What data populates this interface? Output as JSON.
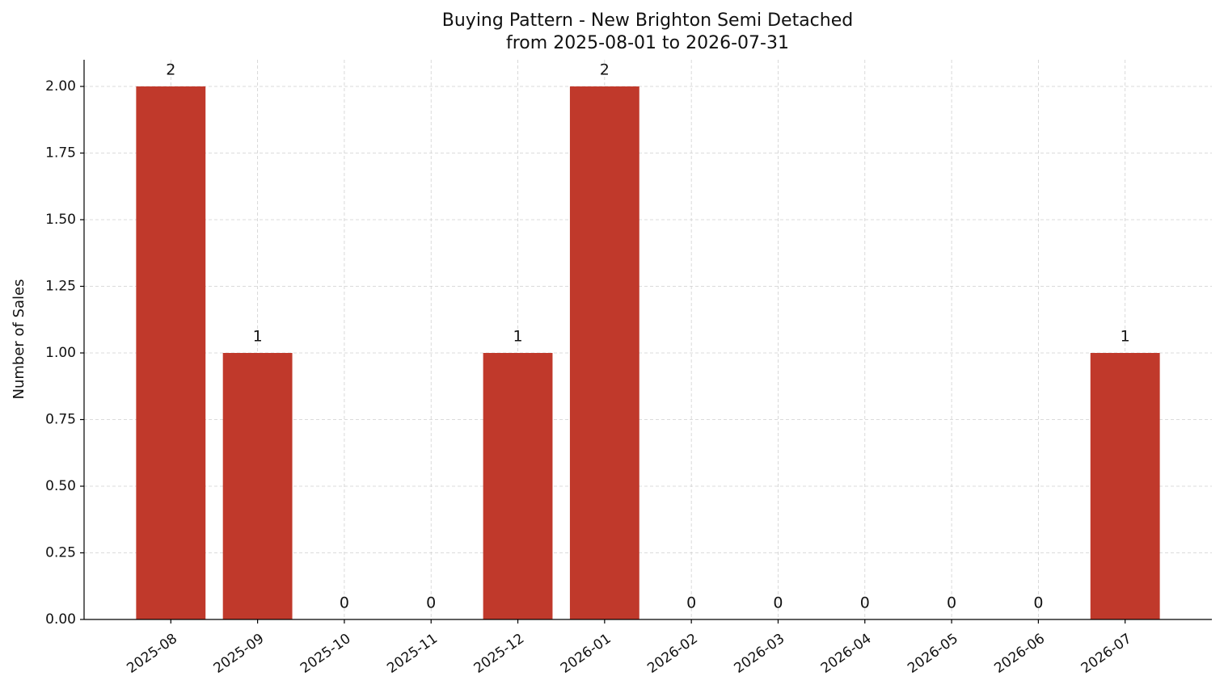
{
  "chart_data": {
    "type": "bar",
    "title": "Buying Pattern - New Brighton Semi Detached",
    "subtitle": "from 2025-08-01 to 2026-07-31",
    "y_label": "Number of Sales",
    "categories": [
      "2025-08",
      "2025-09",
      "2025-10",
      "2025-11",
      "2025-12",
      "2026-01",
      "2026-02",
      "2026-03",
      "2026-04",
      "2026-05",
      "2026-06",
      "2026-07"
    ],
    "values": [
      2,
      1,
      0,
      0,
      1,
      2,
      0,
      0,
      0,
      0,
      0,
      1
    ],
    "color": "#c0392b",
    "ylim": [
      0,
      2.1
    ],
    "yticks": [
      {
        "value": 0,
        "label": "0.00"
      },
      {
        "value": 0.25,
        "label": "0.25"
      },
      {
        "value": 0.5,
        "label": "0.50"
      },
      {
        "value": 0.75,
        "label": "0.75"
      },
      {
        "value": 1,
        "label": "1.00"
      },
      {
        "value": 1.25,
        "label": "1.25"
      },
      {
        "value": 1.5,
        "label": "1.50"
      },
      {
        "value": 1.75,
        "label": "1.75"
      },
      {
        "value": 2,
        "label": "2.00"
      }
    ],
    "grid": true
  }
}
